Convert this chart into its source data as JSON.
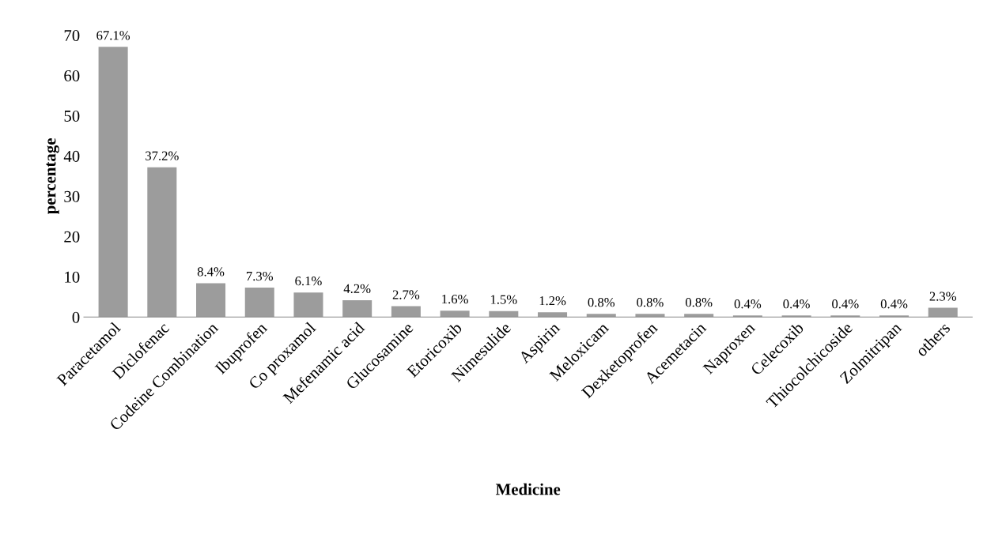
{
  "chart_data": {
    "type": "bar",
    "xlabel": "Medicine",
    "ylabel": "percentage",
    "categories": [
      "Paracetamol",
      "Diclofenac",
      "Codeine Combination",
      "Ibuprofen",
      "Co proxamol",
      "Mefenamic acid",
      "Glucosamine",
      "Etoricoxib",
      "Nimesulide",
      "Aspirin",
      "Meloxicam",
      "Dexketoprofen",
      "Acemetacin",
      "Naproxen",
      "Celecoxib",
      "Thiocolchicoside",
      "Zolmitripan",
      "others"
    ],
    "values": [
      67.1,
      37.2,
      8.4,
      7.3,
      6.1,
      4.2,
      2.7,
      1.6,
      1.5,
      1.2,
      0.8,
      0.8,
      0.8,
      0.4,
      0.4,
      0.4,
      0.4,
      2.3
    ],
    "value_labels": [
      "67.1%",
      "37.2%",
      "8.4%",
      "7.3%",
      "6.1%",
      "4.2%",
      "2.7%",
      "1.6%",
      "1.5%",
      "1.2%",
      "0.8%",
      "0.8%",
      "0.8%",
      "0.4%",
      "0.4%",
      "0.4%",
      "0.4%",
      "2.3%"
    ],
    "color": "#9c9c9c",
    "ylim": [
      0,
      70
    ],
    "yticks": [
      0,
      10,
      20,
      30,
      40,
      50,
      60,
      70
    ],
    "grid": false,
    "legend": false
  }
}
